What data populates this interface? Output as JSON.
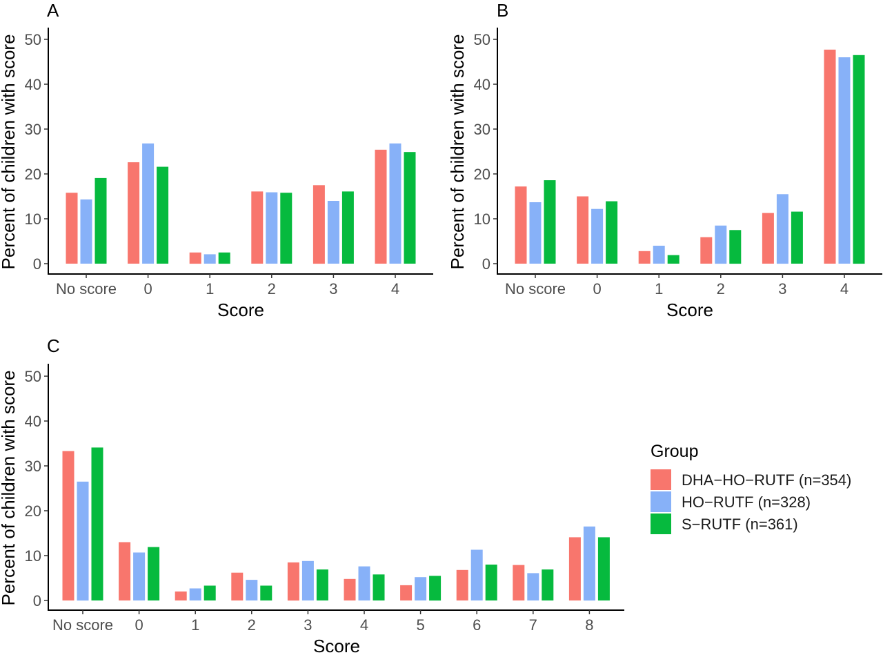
{
  "legend": {
    "title": "Group",
    "entries": [
      {
        "label": "DHA−HO−RUTF (n=354)",
        "color": "#F8766D"
      },
      {
        "label": "HO−RUTF (n=328)",
        "color": "#87B1F8"
      },
      {
        "label": "S−RUTF (n=361)",
        "color": "#06BA3E"
      }
    ]
  },
  "chart_data": [
    {
      "panel": "A",
      "type": "bar",
      "xlabel": "Score",
      "ylabel": "Percent of children with score",
      "ylim": [
        0,
        50
      ],
      "yticks": [
        0,
        10,
        20,
        30,
        40,
        50
      ],
      "categories": [
        "No score",
        "0",
        "1",
        "2",
        "3",
        "4"
      ],
      "series": [
        {
          "name": "DHA−HO−RUTF (n=354)",
          "values": [
            15.8,
            22.6,
            2.5,
            16.1,
            17.5,
            25.4
          ]
        },
        {
          "name": "HO−RUTF (n=328)",
          "values": [
            14.3,
            26.8,
            2.1,
            15.9,
            14.0,
            26.8
          ]
        },
        {
          "name": "S−RUTF (n=361)",
          "values": [
            19.1,
            21.6,
            2.5,
            15.8,
            16.1,
            24.9
          ]
        }
      ]
    },
    {
      "panel": "B",
      "type": "bar",
      "xlabel": "Score",
      "ylabel": "Percent of children with score",
      "ylim": [
        0,
        50
      ],
      "yticks": [
        0,
        10,
        20,
        30,
        40,
        50
      ],
      "categories": [
        "No score",
        "0",
        "1",
        "2",
        "3",
        "4"
      ],
      "series": [
        {
          "name": "DHA−HO−RUTF (n=354)",
          "values": [
            17.2,
            15.0,
            2.8,
            5.9,
            11.3,
            47.7
          ]
        },
        {
          "name": "HO−RUTF (n=328)",
          "values": [
            13.7,
            12.2,
            4.0,
            8.5,
            15.5,
            46.0
          ]
        },
        {
          "name": "S−RUTF (n=361)",
          "values": [
            18.6,
            13.9,
            1.9,
            7.5,
            11.6,
            46.5
          ]
        }
      ]
    },
    {
      "panel": "C",
      "type": "bar",
      "xlabel": "Score",
      "ylabel": "Percent of children with score",
      "ylim": [
        0,
        50
      ],
      "yticks": [
        0,
        10,
        20,
        30,
        40,
        50
      ],
      "categories": [
        "No score",
        "0",
        "1",
        "2",
        "3",
        "4",
        "5",
        "6",
        "7",
        "8"
      ],
      "series": [
        {
          "name": "DHA−HO−RUTF (n=354)",
          "values": [
            33.3,
            13.0,
            2.0,
            6.2,
            8.5,
            4.8,
            3.4,
            6.8,
            7.9,
            14.1
          ]
        },
        {
          "name": "HO−RUTF (n=328)",
          "values": [
            26.5,
            10.7,
            2.7,
            4.6,
            8.8,
            7.6,
            5.2,
            11.3,
            6.1,
            16.5
          ]
        },
        {
          "name": "S−RUTF (n=361)",
          "values": [
            34.1,
            11.9,
            3.3,
            3.3,
            6.9,
            5.8,
            5.5,
            8.0,
            6.9,
            14.1
          ]
        }
      ]
    }
  ]
}
